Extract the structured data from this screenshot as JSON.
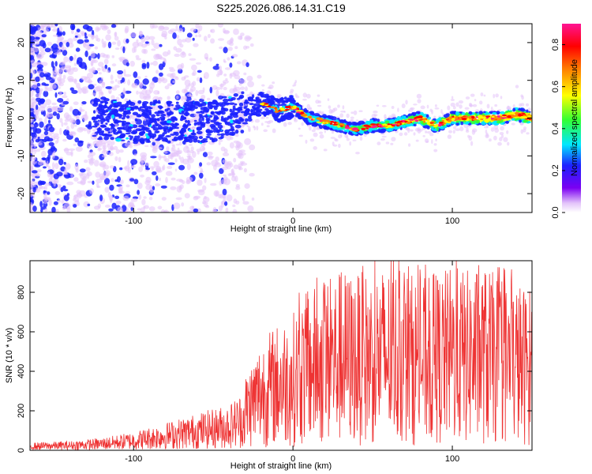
{
  "title": "S225.2026.086.14.31.C19",
  "chart_data": [
    {
      "type": "heatmap",
      "xlabel": "Height of straight line (km)",
      "ylabel": "Frequency (Hz)",
      "xlim": [
        -165,
        150
      ],
      "ylim": [
        -25,
        25
      ],
      "xticks": [
        -100,
        0,
        100
      ],
      "yticks": [
        -20,
        -10,
        0,
        10,
        20
      ],
      "grid": false,
      "ridge": {
        "x": [
          -125,
          -100,
          -75,
          -50,
          -30,
          -20,
          -10,
          0,
          10,
          20,
          30,
          40,
          50,
          60,
          70,
          80,
          90,
          100,
          110,
          120,
          130,
          140,
          150
        ],
        "y": [
          0,
          -1,
          -1,
          -1,
          2,
          4,
          2,
          3,
          0,
          -1,
          -2,
          -3,
          -2,
          -2,
          -1,
          0,
          -2,
          0,
          0,
          0,
          0,
          1,
          0
        ]
      },
      "colorbar": {
        "label": "Normalized spectral amplitude",
        "range": [
          0,
          0.9
        ],
        "ticks": [
          0.0,
          0.2,
          0.4,
          0.6,
          0.8
        ],
        "tick_labels": [
          "0.0",
          "0.2",
          "0.4",
          "0.6",
          "0.8"
        ],
        "colormap": [
          "#ffffff",
          "#e3c3fa",
          "#7b00f2",
          "#1c22ff",
          "#00e8ff",
          "#33ff33",
          "#ffff00",
          "#ff8800",
          "#ff0000",
          "#ff1493"
        ]
      }
    },
    {
      "type": "line",
      "xlabel": "Height of straight line (km)",
      "ylabel": "SNR (10 * v/v)",
      "xlim": [
        -165,
        150
      ],
      "ylim": [
        0,
        960
      ],
      "xticks": [
        -100,
        0,
        100
      ],
      "yticks": [
        0,
        200,
        400,
        600,
        800
      ],
      "grid": false,
      "series": [
        {
          "color": "#ee3333",
          "x": [
            -165,
            -140,
            -120,
            -100,
            -80,
            -60,
            -40,
            -30,
            -20,
            -10,
            0,
            10,
            20,
            30,
            40,
            50,
            60,
            70,
            80,
            90,
            100,
            110,
            120,
            130,
            140,
            150
          ],
          "y": [
            25,
            30,
            40,
            60,
            90,
            120,
            150,
            200,
            290,
            330,
            360,
            420,
            440,
            470,
            460,
            470,
            480,
            470,
            450,
            460,
            480,
            470,
            480,
            450,
            440,
            420
          ]
        }
      ]
    }
  ]
}
